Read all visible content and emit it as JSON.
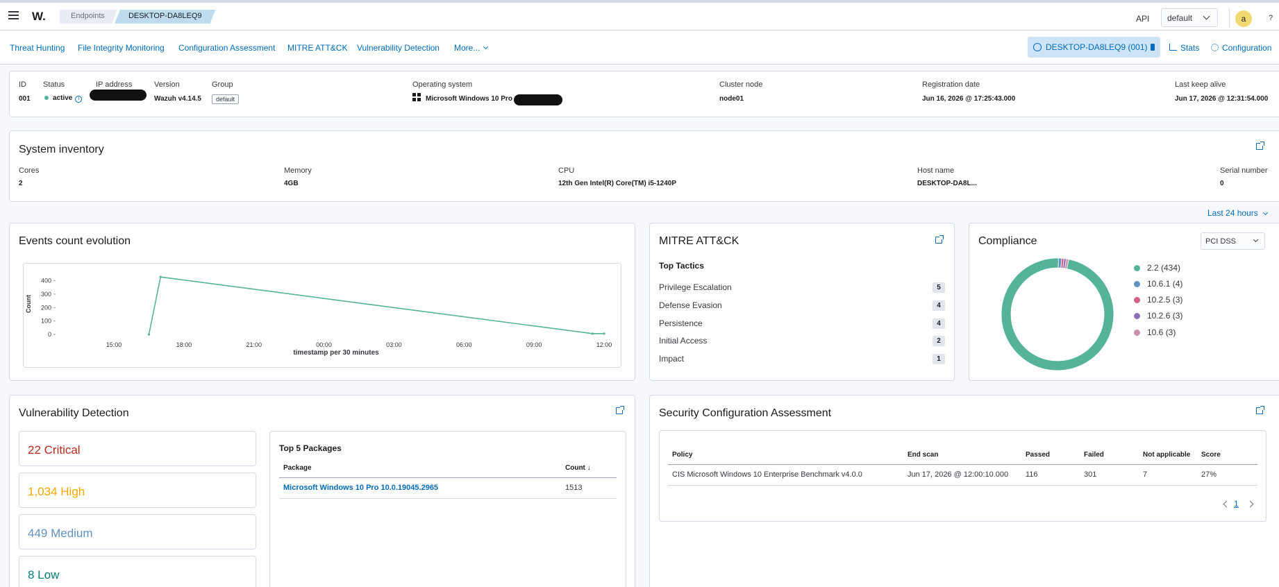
{
  "header": {
    "logo": "W.",
    "breadcrumbs": [
      "Endpoints",
      "DESKTOP-DA8LEQ9"
    ],
    "api_label": "API",
    "api_selected": "default",
    "avatar_initial": "a"
  },
  "nav": {
    "tabs": [
      "Threat Hunting",
      "File Integrity Monitoring",
      "Configuration Assessment",
      "MITRE ATT&CK",
      "Vulnerability Detection",
      "More..."
    ],
    "agent_pill": "DESKTOP-DA8LEQ9 (001)",
    "stats": "Stats",
    "configuration": "Configuration"
  },
  "agent_info": {
    "id_label": "ID",
    "id": "001",
    "status_label": "Status",
    "status": "active",
    "ip_label": "IP address",
    "version_label": "Version",
    "version": "Wazuh v4.14.5",
    "group_label": "Group",
    "group": "default",
    "os_label": "Operating system",
    "os": "Microsoft Windows 10 Pro 10",
    "cluster_label": "Cluster node",
    "cluster": "node01",
    "reg_label": "Registration date",
    "reg": "Jun 16, 2026 @ 17:25:43.000",
    "keepalive_label": "Last keep alive",
    "keepalive": "Jun 17, 2026 @ 12:31:54.000"
  },
  "inventory": {
    "title": "System inventory",
    "cores_label": "Cores",
    "cores": "2",
    "memory_label": "Memory",
    "memory": "4GB",
    "cpu_label": "CPU",
    "cpu": "12th Gen Intel(R) Core(TM) i5-1240P",
    "host_label": "Host name",
    "host": "DESKTOP-DA8L...",
    "serial_label": "Serial number",
    "serial": "0"
  },
  "time_range": "Last 24 hours",
  "events": {
    "title": "Events count evolution"
  },
  "chart_data": {
    "type": "line",
    "title": "",
    "xlabel": "timestamp per 30 minutes",
    "ylabel": "Count",
    "x_ticks": [
      "15:00",
      "18:00",
      "21:00",
      "00:00",
      "03:00",
      "06:00",
      "09:00",
      "12:00"
    ],
    "y_ticks": [
      0,
      100,
      200,
      300,
      400
    ],
    "ylim": [
      0,
      434
    ],
    "points": [
      {
        "x": "16:30",
        "y": 0
      },
      {
        "x": "17:00",
        "y": 428
      },
      {
        "x": "11:30",
        "y": 6
      },
      {
        "x": "12:00",
        "y": 6
      }
    ],
    "series_color": "#54b399"
  },
  "mitre": {
    "title": "MITRE ATT&CK",
    "subtitle": "Top Tactics",
    "tactics": [
      {
        "name": "Privilege Escalation",
        "count": "5"
      },
      {
        "name": "Defense Evasion",
        "count": "4"
      },
      {
        "name": "Persistence",
        "count": "4"
      },
      {
        "name": "Initial Access",
        "count": "2"
      },
      {
        "name": "Impact",
        "count": "1"
      }
    ]
  },
  "compliance": {
    "title": "Compliance",
    "selected": "PCI DSS",
    "items": [
      {
        "label": "2.2 (434)",
        "value": 434,
        "color": "#54b399"
      },
      {
        "label": "10.6.1 (4)",
        "value": 4,
        "color": "#6092c0"
      },
      {
        "label": "10.2.5 (3)",
        "value": 3,
        "color": "#d36086"
      },
      {
        "label": "10.2.6 (3)",
        "value": 3,
        "color": "#9170b8"
      },
      {
        "label": "10.6 (3)",
        "value": 3,
        "color": "#ca8eae"
      }
    ]
  },
  "vuln": {
    "title": "Vulnerability Detection",
    "severities": [
      {
        "label": "22 Critical",
        "color": "#bd271e"
      },
      {
        "label": "1,034 High",
        "color": "#f5a700"
      },
      {
        "label": "449 Medium",
        "color": "#6092c0"
      },
      {
        "label": "8 Low",
        "color": "#017d73"
      }
    ],
    "packages_title": "Top 5 Packages",
    "col_package": "Package",
    "col_count": "Count",
    "packages": [
      {
        "name": "Microsoft Windows 10 Pro 10.0.19045.2965",
        "count": "1513"
      }
    ]
  },
  "sca": {
    "title": "Security Configuration Assessment",
    "columns": [
      "Policy",
      "End scan",
      "Passed",
      "Failed",
      "Not applicable",
      "Score"
    ],
    "rows": [
      {
        "policy": "CIS Microsoft Windows 10 Enterprise Benchmark v4.0.0",
        "end_scan": "Jun 17, 2026 @ 12:00:10.000",
        "passed": "116",
        "failed": "301",
        "na": "7",
        "score": "27%"
      }
    ],
    "page": "1"
  }
}
